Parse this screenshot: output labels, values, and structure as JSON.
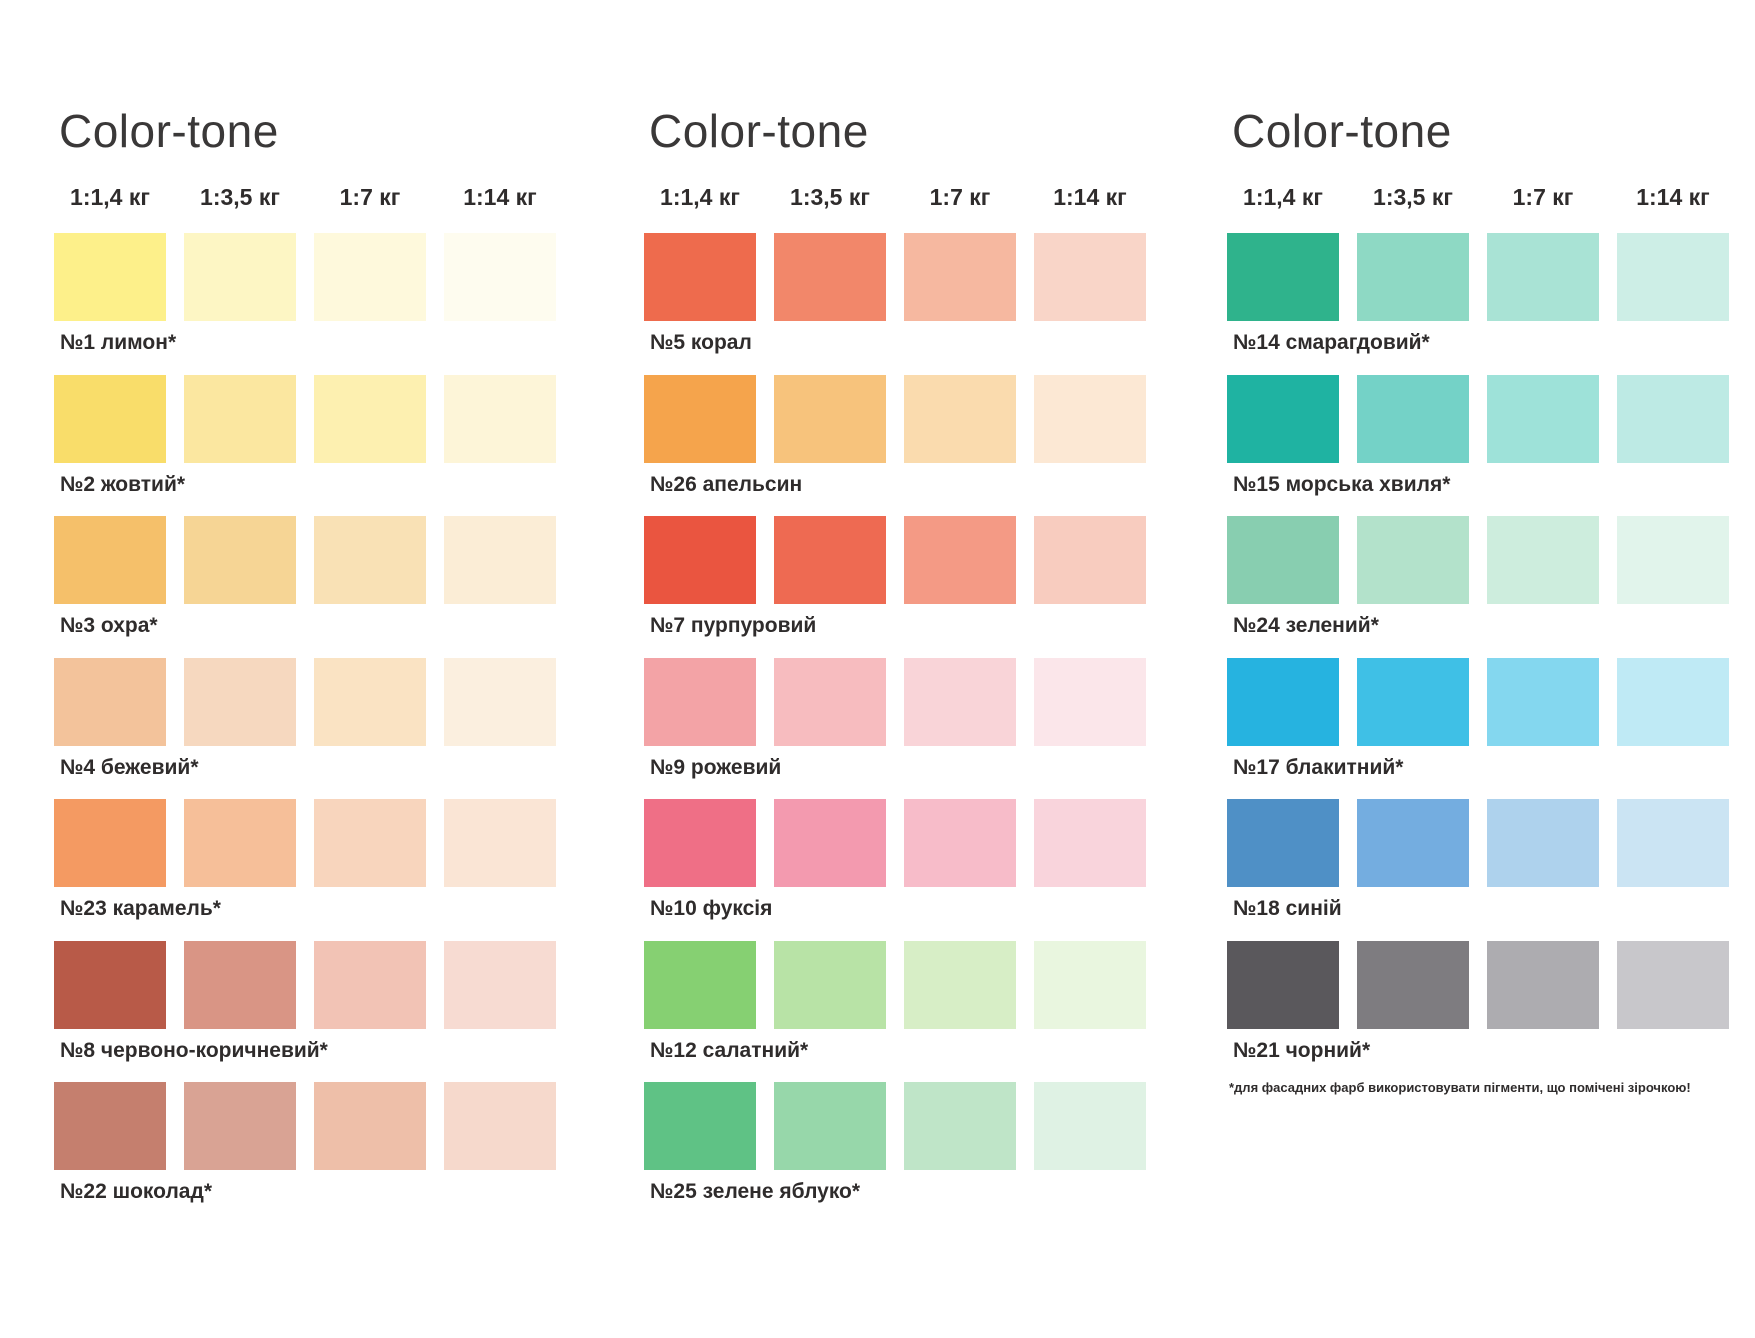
{
  "columns": [
    {
      "title": "Color-tone",
      "headers": [
        "1:1,4 кг",
        "1:3,5 кг",
        "1:7 кг",
        "1:14 кг"
      ],
      "rows": [
        {
          "label": "№1 лимон*",
          "colors": [
            "#fdf08a",
            "#fdf6c4",
            "#fef9dc",
            "#fefcef"
          ]
        },
        {
          "label": "№2 жовтий*",
          "colors": [
            "#f9dd6a",
            "#fbe7a0",
            "#fdf0b0",
            "#fdf5d8"
          ]
        },
        {
          "label": "№3 охра*",
          "colors": [
            "#f5c06a",
            "#f6d595",
            "#f9e1b5",
            "#fbedd6"
          ]
        },
        {
          "label": "№4 бежевий*",
          "colors": [
            "#f3c39b",
            "#f6d8bf",
            "#fae3c3",
            "#fbefdf"
          ]
        },
        {
          "label": "№23 карамель*",
          "colors": [
            "#f49a62",
            "#f6bf99",
            "#f8d5bd",
            "#fae5d5"
          ]
        },
        {
          "label": "№8 червоно-коричневий*",
          "colors": [
            "#b85a48",
            "#d99585",
            "#f2c3b5",
            "#f7dbd2"
          ]
        },
        {
          "label": "№22 шоколад*",
          "colors": [
            "#c57f6e",
            "#d9a394",
            "#eebfa9",
            "#f6d9cc"
          ]
        }
      ]
    },
    {
      "title": "Color-tone",
      "headers": [
        "1:1,4 кг",
        "1:3,5 кг",
        "1:7 кг",
        "1:14 кг"
      ],
      "rows": [
        {
          "label": "№5 корал",
          "colors": [
            "#ee6b4d",
            "#f2876a",
            "#f6b8a0",
            "#f9d5c8"
          ]
        },
        {
          "label": "№26 апельсин",
          "colors": [
            "#f5a44c",
            "#f7c37c",
            "#fadbae",
            "#fce8d4"
          ]
        },
        {
          "label": "№7 пурпуровий",
          "colors": [
            "#ea5540",
            "#ee6a52",
            "#f49a85",
            "#f8ccbf"
          ]
        },
        {
          "label": "№9 рожевий",
          "colors": [
            "#f3a3a6",
            "#f7bcbf",
            "#f9d4d8",
            "#fbe6ea"
          ]
        },
        {
          "label": "№10 фуксія",
          "colors": [
            "#ef6f86",
            "#f39aaf",
            "#f7bcc9",
            "#f9d4dc"
          ]
        },
        {
          "label": "№12 салатний*",
          "colors": [
            "#86d072",
            "#b8e3a6",
            "#d7eec6",
            "#e9f6df"
          ]
        },
        {
          "label": "№25 зелене яблуко*",
          "colors": [
            "#5fc285",
            "#97d7aa",
            "#bfe5c8",
            "#dff2e4"
          ]
        }
      ]
    },
    {
      "title": "Color-tone",
      "headers": [
        "1:1,4 кг",
        "1:3,5 кг",
        "1:7 кг",
        "1:14 кг"
      ],
      "rows": [
        {
          "label": "№14 смарагдовий*",
          "colors": [
            "#2fb38c",
            "#8ed9c4",
            "#a9e3d5",
            "#cdeee6"
          ]
        },
        {
          "label": "№15 морська хвиля*",
          "colors": [
            "#1fb3a2",
            "#74d2c7",
            "#9ee2d9",
            "#bdeae4"
          ]
        },
        {
          "label": "№24 зелений*",
          "colors": [
            "#88ceb0",
            "#b3e2cb",
            "#cdeddd",
            "#e1f4eb"
          ]
        },
        {
          "label": "№17 блакитний*",
          "colors": [
            "#26b3e0",
            "#3fc0e6",
            "#84d7ef",
            "#bfeaf5"
          ]
        },
        {
          "label": "№18 синій",
          "colors": [
            "#4f90c6",
            "#74ade0",
            "#aed2ed",
            "#cbe4f3"
          ]
        },
        {
          "label": "№21 чорний*",
          "colors": [
            "#5a585c",
            "#7e7c80",
            "#adacb0",
            "#c8c7cb"
          ]
        }
      ]
    }
  ],
  "footnote": "*для фасадних фарб використовувати пігменти, що помічені зірочкою!"
}
